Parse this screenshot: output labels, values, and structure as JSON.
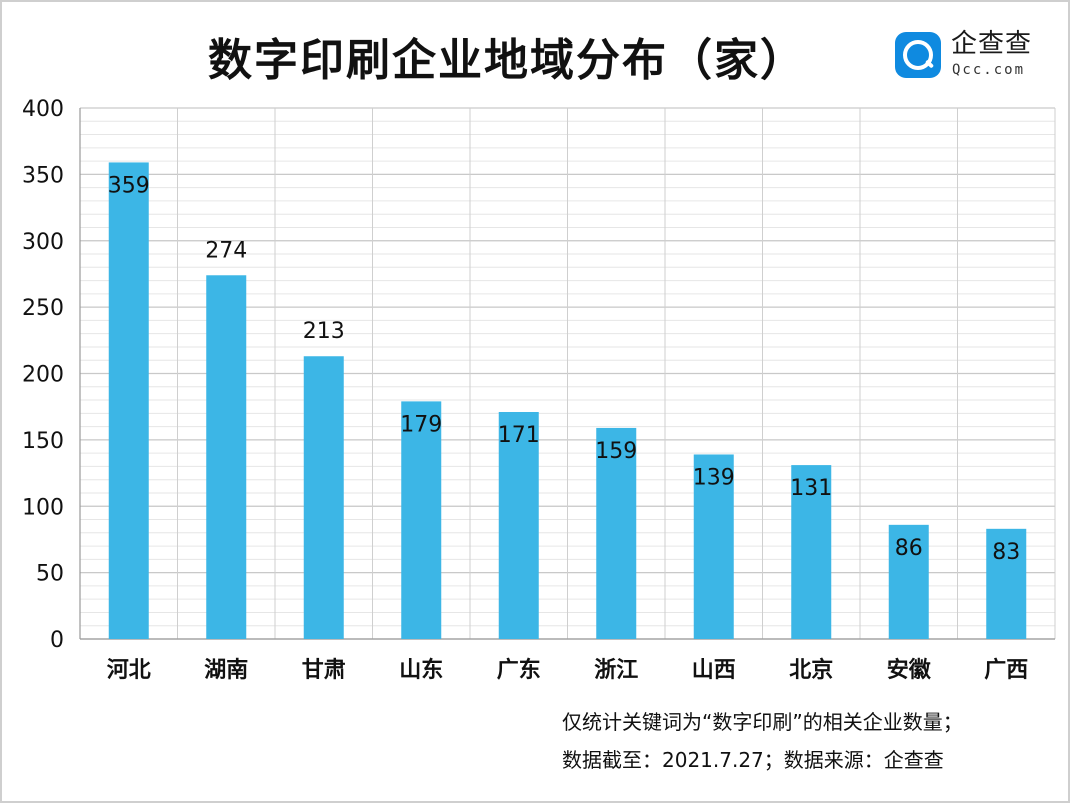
{
  "chart_data": {
    "type": "bar",
    "title": "数字印刷企业地域分布（家）",
    "categories": [
      "河北",
      "湖南",
      "甘肃",
      "山东",
      "广东",
      "浙江",
      "山西",
      "北京",
      "安徽",
      "广西"
    ],
    "values": [
      359,
      274,
      213,
      179,
      171,
      159,
      139,
      131,
      86,
      83
    ],
    "value_labels": [
      "359",
      "274",
      "213",
      "179",
      "171",
      "159",
      "139",
      "131",
      "86",
      "83"
    ],
    "yticks": [
      "0",
      "50",
      "100",
      "150",
      "200",
      "250",
      "300",
      "350",
      "400"
    ],
    "ylim": [
      0,
      400
    ],
    "minor_step": 10,
    "grid": true,
    "legend": "none",
    "bar_color": "#3cb6e6"
  },
  "logo": {
    "name": "企查查",
    "domain": "Qcc.com"
  },
  "notes": {
    "line1": "仅统计关键词为“数字印刷”的相关企业数量；",
    "line2": "数据截至：2021.7.27；数据来源：企查查"
  }
}
